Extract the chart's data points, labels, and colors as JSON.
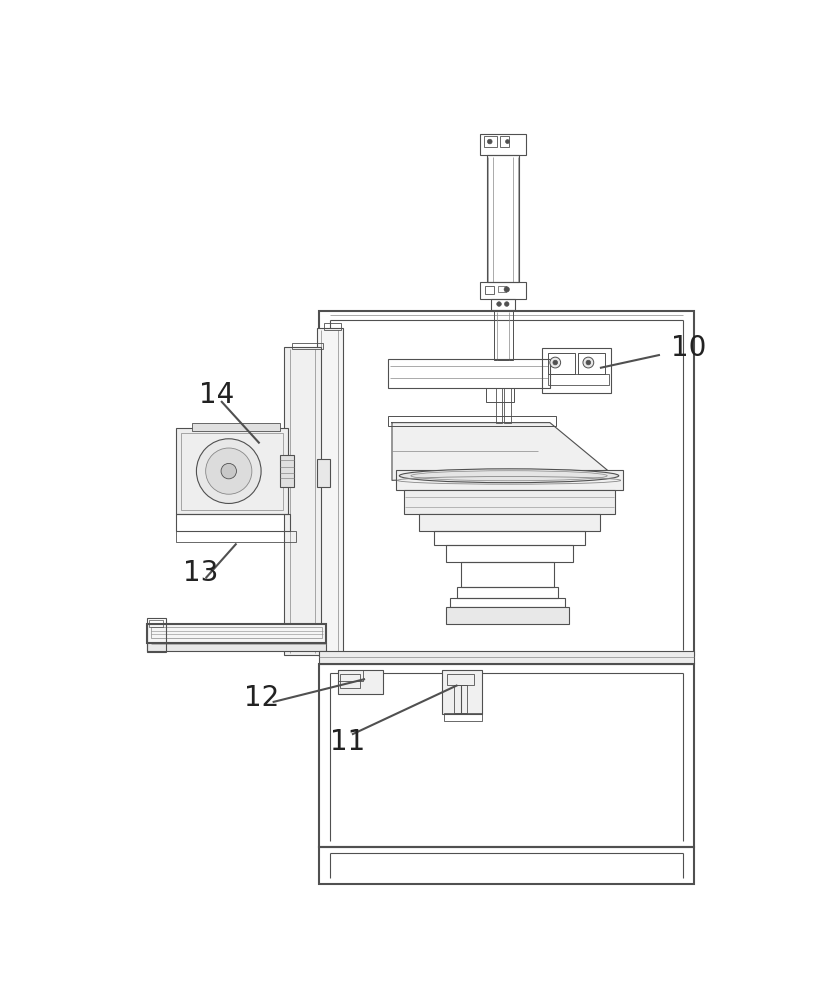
{
  "bg": "#ffffff",
  "lc": "#505050",
  "lc2": "#888888",
  "lw": 0.8,
  "lwt": 1.5,
  "label_fs": 20,
  "label_color": "#222222"
}
